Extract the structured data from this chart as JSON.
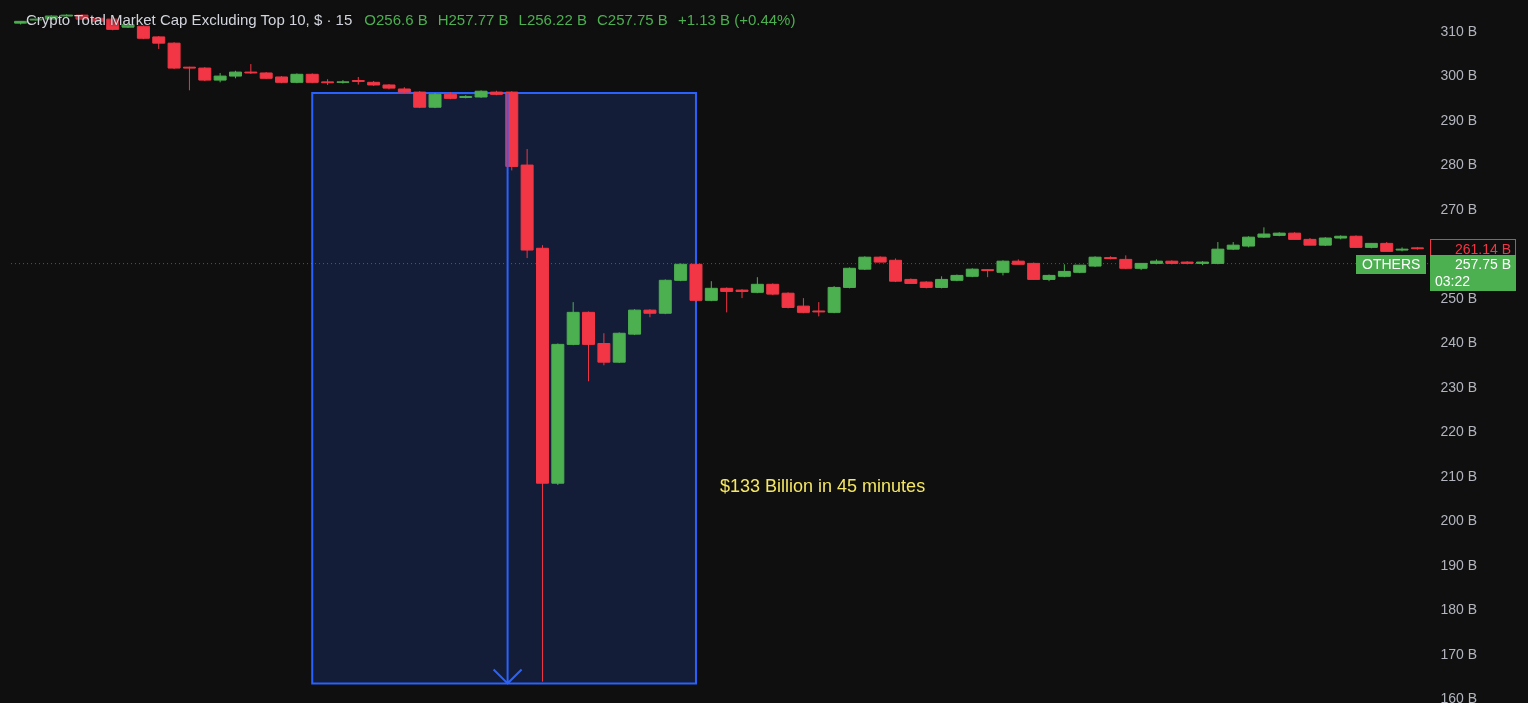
{
  "chart_data": {
    "type": "candlestick",
    "title": "Crypto Total Market Cap Excluding Top 10, $ · 15",
    "annotations": [
      "O256.6 B",
      "H257.77 B",
      "L256.22 B",
      "C257.75 B",
      "+1.13 B (+0.44%)",
      "$133 Billion in 45 minutes",
      "261.14 B",
      "257.75 B",
      "03:22"
    ],
    "categories": [
      null,
      null,
      null,
      null,
      null,
      null,
      null,
      null,
      null,
      null,
      null,
      null,
      null,
      null,
      null,
      null,
      null,
      null,
      null,
      null,
      null,
      null,
      null,
      null,
      null,
      null,
      null,
      null,
      null,
      null,
      null,
      null,
      null,
      null,
      null,
      null,
      null,
      null,
      null,
      null,
      null,
      null,
      null,
      null,
      null,
      null,
      null,
      null,
      null,
      null,
      null,
      null,
      null,
      null,
      null,
      null,
      null,
      null,
      null,
      null,
      null,
      null,
      null,
      null,
      null,
      null,
      null,
      null,
      null,
      null,
      null,
      null,
      null,
      null,
      null,
      null,
      null,
      null,
      null,
      null,
      null,
      null,
      null,
      null,
      null,
      null,
      null,
      null,
      null,
      null,
      null,
      null
    ],
    "ohlc": [
      [
        311.8,
        312.2,
        311.5,
        312.2
      ],
      [
        312.5,
        312.9,
        312.3,
        312.7
      ],
      [
        312.7,
        313.6,
        312.5,
        313.4
      ],
      [
        313.4,
        313.8,
        313.2,
        313.6
      ],
      [
        313.6,
        313.8,
        312.5,
        312.7
      ],
      [
        312.9,
        313.1,
        312.0,
        312.2
      ],
      [
        312.7,
        312.9,
        310.2,
        310.4
      ],
      [
        310.9,
        311.7,
        310.7,
        311.5
      ],
      [
        311.1,
        311.3,
        308.2,
        308.4
      ],
      [
        308.7,
        308.9,
        306.0,
        307.3
      ],
      [
        307.3,
        307.5,
        301.5,
        301.7
      ],
      [
        301.9,
        302.0,
        296.7,
        301.7
      ],
      [
        301.7,
        301.9,
        298.8,
        299.0
      ],
      [
        299.0,
        300.6,
        298.5,
        299.9
      ],
      [
        299.9,
        301.1,
        299.4,
        300.8
      ],
      [
        300.8,
        302.6,
        300.4,
        300.6
      ],
      [
        300.6,
        300.8,
        299.3,
        299.4
      ],
      [
        299.7,
        299.9,
        298.3,
        298.5
      ],
      [
        298.5,
        300.5,
        298.3,
        300.3
      ],
      [
        300.3,
        300.5,
        298.3,
        298.5
      ],
      [
        298.6,
        299.2,
        297.9,
        298.4
      ],
      [
        298.5,
        299.0,
        298.2,
        298.6
      ],
      [
        298.9,
        299.7,
        298.0,
        298.7
      ],
      [
        298.5,
        298.8,
        297.7,
        297.9
      ],
      [
        297.9,
        298.1,
        296.9,
        297.2
      ],
      [
        297.0,
        297.4,
        296.1,
        296.3
      ],
      [
        296.3,
        296.5,
        292.7,
        292.9
      ],
      [
        292.9,
        296.1,
        292.7,
        295.8
      ],
      [
        295.8,
        296.3,
        294.7,
        294.9
      ],
      [
        295.1,
        295.6,
        294.9,
        295.3
      ],
      [
        295.2,
        296.7,
        295.0,
        296.5
      ],
      [
        296.3,
        296.6,
        295.6,
        295.8
      ],
      [
        296.3,
        296.5,
        278.7,
        279.6
      ],
      [
        279.9,
        283.5,
        259.0,
        260.8
      ],
      [
        261.2,
        261.9,
        163.8,
        208.4
      ],
      [
        208.4,
        239.8,
        208.0,
        239.6
      ],
      [
        239.6,
        249.1,
        239.4,
        246.8
      ],
      [
        246.8,
        247.0,
        231.3,
        239.6
      ],
      [
        239.8,
        242.1,
        234.9,
        235.6
      ],
      [
        235.6,
        242.3,
        235.4,
        242.1
      ],
      [
        241.9,
        247.5,
        241.7,
        247.3
      ],
      [
        247.3,
        247.5,
        245.7,
        246.6
      ],
      [
        246.6,
        254.2,
        246.4,
        254.0
      ],
      [
        254.0,
        257.8,
        253.8,
        257.6
      ],
      [
        257.6,
        257.8,
        249.1,
        249.5
      ],
      [
        249.5,
        253.8,
        249.3,
        252.2
      ],
      [
        252.2,
        252.4,
        246.8,
        251.5
      ],
      [
        251.8,
        252.0,
        250.0,
        251.5
      ],
      [
        251.3,
        254.7,
        251.1,
        253.1
      ],
      [
        253.1,
        253.3,
        250.7,
        250.9
      ],
      [
        251.1,
        251.3,
        247.7,
        247.9
      ],
      [
        248.2,
        250.0,
        246.6,
        246.8
      ],
      [
        247.1,
        249.1,
        245.9,
        246.9
      ],
      [
        246.8,
        252.7,
        246.6,
        252.4
      ],
      [
        252.4,
        256.9,
        252.2,
        256.7
      ],
      [
        256.5,
        259.4,
        256.3,
        259.2
      ],
      [
        259.2,
        259.4,
        258.1,
        258.1
      ],
      [
        258.5,
        258.9,
        253.6,
        253.8
      ],
      [
        254.2,
        254.4,
        253.3,
        253.3
      ],
      [
        253.6,
        253.8,
        252.2,
        252.4
      ],
      [
        252.4,
        254.9,
        252.2,
        254.2
      ],
      [
        254.0,
        255.3,
        253.8,
        255.1
      ],
      [
        254.9,
        256.7,
        254.7,
        256.5
      ],
      [
        256.4,
        256.5,
        254.7,
        256.2
      ],
      [
        255.8,
        258.5,
        255.1,
        258.3
      ],
      [
        258.3,
        258.7,
        257.6,
        257.6
      ],
      [
        257.8,
        258.0,
        254.2,
        254.2
      ],
      [
        254.2,
        255.3,
        253.8,
        255.1
      ],
      [
        254.9,
        257.6,
        254.7,
        256.0
      ],
      [
        255.8,
        257.4,
        255.6,
        257.4
      ],
      [
        257.2,
        259.4,
        257.0,
        259.2
      ],
      [
        259.1,
        259.4,
        258.7,
        258.9
      ],
      [
        258.7,
        259.6,
        256.5,
        256.7
      ],
      [
        256.7,
        257.8,
        256.3,
        257.8
      ],
      [
        257.8,
        258.7,
        257.6,
        258.3
      ],
      [
        258.3,
        258.5,
        257.6,
        257.8
      ],
      [
        258.1,
        258.3,
        257.6,
        257.8
      ],
      [
        257.8,
        258.3,
        257.4,
        258.1
      ],
      [
        257.8,
        262.6,
        257.6,
        261.0
      ],
      [
        261.0,
        262.6,
        260.8,
        261.9
      ],
      [
        261.7,
        263.9,
        261.4,
        263.7
      ],
      [
        263.7,
        265.9,
        263.5,
        264.4
      ],
      [
        264.1,
        264.8,
        263.9,
        264.6
      ],
      [
        264.6,
        264.8,
        263.2,
        263.2
      ],
      [
        263.2,
        263.5,
        261.9,
        261.9
      ],
      [
        261.9,
        263.7,
        261.7,
        263.5
      ],
      [
        263.5,
        264.1,
        263.2,
        263.9
      ],
      [
        263.9,
        264.1,
        261.4,
        261.4
      ],
      [
        261.4,
        262.3,
        261.2,
        262.3
      ],
      [
        262.3,
        262.6,
        260.5,
        260.5
      ],
      [
        260.8,
        261.4,
        260.5,
        261.0
      ],
      [
        261.3,
        261.5,
        260.9,
        261.1
      ]
    ],
    "colors": [
      "#4caf50",
      "#4caf50",
      "#4caf50",
      "#4caf50",
      "#f23645",
      "#f23645",
      "#f23645",
      "#4caf50",
      "#f23645",
      "#f23645",
      "#f23645",
      "#f23645",
      "#f23645",
      "#4caf50",
      "#4caf50",
      "#f23645",
      "#f23645",
      "#f23645",
      "#4caf50",
      "#f23645",
      "#f23645",
      "#4caf50",
      "#f23645",
      "#f23645",
      "#f23645",
      "#f23645",
      "#f23645",
      "#4caf50",
      "#f23645",
      "#4caf50",
      "#4caf50",
      "#f23645",
      "#f23645",
      "#f23645",
      "#f23645",
      "#4caf50",
      "#4caf50",
      "#f23645",
      "#f23645",
      "#4caf50",
      "#4caf50",
      "#f23645",
      "#4caf50",
      "#4caf50",
      "#f23645",
      "#4caf50",
      "#f23645",
      "#f23645",
      "#4caf50",
      "#f23645",
      "#f23645",
      "#f23645",
      "#f23645",
      "#4caf50",
      "#4caf50",
      "#4caf50",
      "#f23645",
      "#f23645",
      "#f23645",
      "#f23645",
      "#4caf50",
      "#4caf50",
      "#4caf50",
      "#f23645",
      "#4caf50",
      "#f23645",
      "#f23645",
      "#4caf50",
      "#4caf50",
      "#4caf50",
      "#4caf50",
      "#f23645",
      "#f23645",
      "#4caf50",
      "#4caf50",
      "#f23645",
      "#f23645",
      "#4caf50",
      "#4caf50",
      "#4caf50",
      "#4caf50",
      "#4caf50",
      "#4caf50",
      "#f23645",
      "#f23645",
      "#4caf50",
      "#4caf50",
      "#f23645",
      "#4caf50",
      "#f23645",
      "#4caf50",
      "#f23645"
    ],
    "ylim": [
      159,
      317
    ],
    "yticks": [
      {
        "value": 160,
        "label": "160 B"
      },
      {
        "value": 170,
        "label": "170 B"
      },
      {
        "value": 180,
        "label": "180 B"
      },
      {
        "value": 190,
        "label": "190 B"
      },
      {
        "value": 200,
        "label": "200 B"
      },
      {
        "value": 210,
        "label": "210 B"
      },
      {
        "value": 220,
        "label": "220 B"
      },
      {
        "value": 230,
        "label": "230 B"
      },
      {
        "value": 240,
        "label": "240 B"
      },
      {
        "value": 250,
        "label": "250 B"
      },
      {
        "value": 270,
        "label": "270 B"
      },
      {
        "value": 280,
        "label": "280 B"
      },
      {
        "value": 290,
        "label": "290 B"
      },
      {
        "value": 300,
        "label": "300 B"
      },
      {
        "value": 310,
        "label": "310 B"
      }
    ],
    "ref_lines": [
      {
        "axis": "y",
        "value": 257.75,
        "label": "OTHERS",
        "color": "#4caf50",
        "line_style": "dotted"
      }
    ],
    "bands": [
      {
        "axis": "y",
        "from": 163.4,
        "to": 296.1,
        "color": "#2962ff"
      }
    ]
  }
}
